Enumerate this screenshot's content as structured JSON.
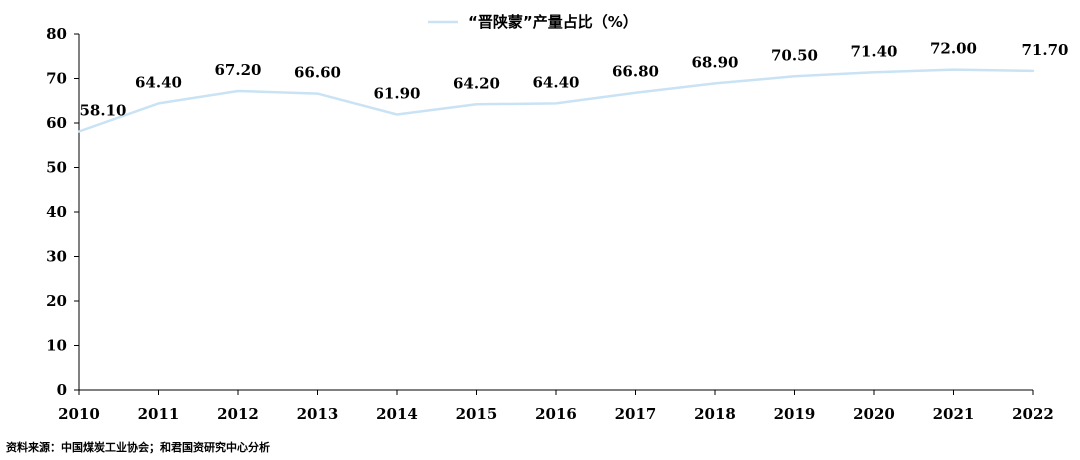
{
  "chart_data": {
    "type": "line",
    "title": "",
    "xlabel": "",
    "ylabel": "",
    "x": [
      "2010",
      "2011",
      "2012",
      "2013",
      "2014",
      "2015",
      "2016",
      "2017",
      "2018",
      "2019",
      "2020",
      "2021",
      "2022"
    ],
    "series": [
      {
        "name": "“晋陕蒙”产量占比（%）",
        "values": [
          58.1,
          64.4,
          67.2,
          66.6,
          61.9,
          64.2,
          64.4,
          66.8,
          68.9,
          70.5,
          71.4,
          72.0,
          71.7
        ],
        "labels": [
          "58.10",
          "64.40",
          "67.20",
          "66.60",
          "61.90",
          "64.20",
          "64.40",
          "66.80",
          "68.90",
          "70.50",
          "71.40",
          "72.00",
          "71.70"
        ],
        "color": "#c9e3f5"
      }
    ],
    "ylim": [
      0,
      80
    ],
    "yticks": [
      0,
      10,
      20,
      30,
      40,
      50,
      60,
      70,
      80
    ],
    "grid": false,
    "legend": "top-center"
  },
  "source": "资料来源：中国煤炭工业协会；和君国资研究中心分析"
}
